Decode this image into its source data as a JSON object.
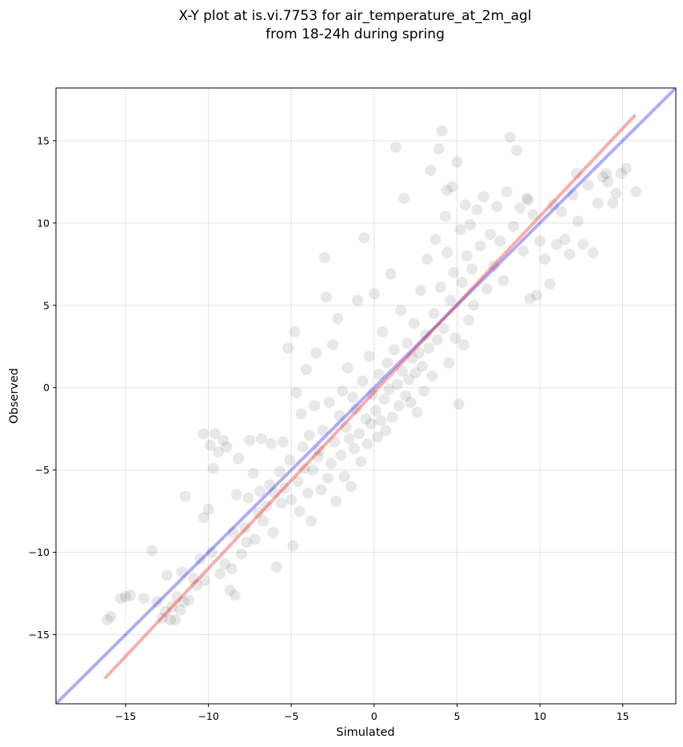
{
  "chart_data": {
    "type": "scatter",
    "title": "X-Y plot at is.vi.7753 for air_temperature_at_2m_agl",
    "subtitle": "from 18-24h during spring",
    "xlabel": "Simulated",
    "ylabel": "Observed",
    "xlim": [
      -19.2,
      18.2
    ],
    "ylim": [
      -19.2,
      18.2
    ],
    "xticks": [
      -15,
      -10,
      -5,
      0,
      5,
      10,
      15
    ],
    "yticks": [
      -15,
      -10,
      -5,
      0,
      5,
      10,
      15
    ],
    "xtick_labels": [
      "−15",
      "−10",
      "−5",
      "0",
      "5",
      "10",
      "15"
    ],
    "ytick_labels": [
      "−15",
      "−10",
      "−5",
      "0",
      "5",
      "10",
      "15"
    ],
    "grid": true,
    "point_color": "#000000",
    "point_opacity": 0.09,
    "points": [
      [
        -16.1,
        -14.1
      ],
      [
        -15.9,
        -13.9
      ],
      [
        -15.3,
        -12.8
      ],
      [
        -15.0,
        -12.7
      ],
      [
        -14.7,
        -12.6
      ],
      [
        -13.9,
        -12.8
      ],
      [
        -13.4,
        -9.9
      ],
      [
        -13.1,
        -13.0
      ],
      [
        -12.8,
        -14.0
      ],
      [
        -12.6,
        -13.6
      ],
      [
        -12.5,
        -11.4
      ],
      [
        -12.3,
        -14.1
      ],
      [
        -12.2,
        -13.3
      ],
      [
        -12.0,
        -14.1
      ],
      [
        -11.9,
        -12.7
      ],
      [
        -11.7,
        -13.5
      ],
      [
        -11.6,
        -11.2
      ],
      [
        -11.5,
        -13.0
      ],
      [
        -11.4,
        -6.6
      ],
      [
        -11.2,
        -12.9
      ],
      [
        -10.9,
        -11.6
      ],
      [
        -10.7,
        -12.0
      ],
      [
        -10.5,
        -10.4
      ],
      [
        -10.3,
        -7.9
      ],
      [
        -10.2,
        -11.7
      ],
      [
        -10.0,
        -7.4
      ],
      [
        -9.9,
        -3.5
      ],
      [
        -9.8,
        -10.0
      ],
      [
        -9.7,
        -4.9
      ],
      [
        -9.6,
        -2.8
      ],
      [
        -10.3,
        -2.8
      ],
      [
        -9.4,
        -3.9
      ],
      [
        -9.3,
        -11.3
      ],
      [
        -9.1,
        -3.2
      ],
      [
        -9.0,
        -10.7
      ],
      [
        -8.9,
        -3.6
      ],
      [
        -8.7,
        -12.3
      ],
      [
        -8.6,
        -11.0
      ],
      [
        -8.5,
        -8.8
      ],
      [
        -8.4,
        -12.6
      ],
      [
        -8.3,
        -6.5
      ],
      [
        -8.2,
        -4.3
      ],
      [
        -8.0,
        -10.1
      ],
      [
        -7.8,
        -8.5
      ],
      [
        -7.7,
        -9.4
      ],
      [
        -7.6,
        -6.7
      ],
      [
        -7.5,
        -3.2
      ],
      [
        -7.3,
        -5.2
      ],
      [
        -7.2,
        -9.2
      ],
      [
        -7.0,
        -7.6
      ],
      [
        -6.9,
        -6.3
      ],
      [
        -6.8,
        -3.1
      ],
      [
        -6.7,
        -8.1
      ],
      [
        -6.5,
        -7.2
      ],
      [
        -6.3,
        -5.9
      ],
      [
        -6.2,
        -3.4
      ],
      [
        -6.1,
        -8.8
      ],
      [
        -6.0,
        -6.4
      ],
      [
        -5.9,
        -10.9
      ],
      [
        -5.7,
        -5.1
      ],
      [
        -5.6,
        -7.0
      ],
      [
        -5.5,
        -3.3
      ],
      [
        -5.4,
        -6.1
      ],
      [
        -5.2,
        2.4
      ],
      [
        -5.1,
        -4.4
      ],
      [
        -5.0,
        -6.8
      ],
      [
        -4.9,
        -9.6
      ],
      [
        -4.8,
        3.4
      ],
      [
        -4.7,
        -0.3
      ],
      [
        -4.6,
        -5.7
      ],
      [
        -4.5,
        -7.5
      ],
      [
        -4.4,
        -1.6
      ],
      [
        -4.3,
        -3.6
      ],
      [
        -4.2,
        -4.9
      ],
      [
        -4.1,
        1.1
      ],
      [
        -4.0,
        -6.4
      ],
      [
        -3.9,
        -2.9
      ],
      [
        -3.8,
        -8.1
      ],
      [
        -3.7,
        -5.0
      ],
      [
        -3.6,
        -1.1
      ],
      [
        -3.5,
        2.1
      ],
      [
        -3.4,
        -4.2
      ],
      [
        -3.3,
        -3.8
      ],
      [
        -3.2,
        -6.2
      ],
      [
        -3.1,
        -2.6
      ],
      [
        -3.0,
        7.9
      ],
      [
        -2.9,
        5.5
      ],
      [
        -2.8,
        -5.5
      ],
      [
        -2.7,
        -0.9
      ],
      [
        -2.6,
        -4.6
      ],
      [
        -2.5,
        2.6
      ],
      [
        -2.4,
        -3.3
      ],
      [
        -2.3,
        -6.9
      ],
      [
        -2.2,
        4.2
      ],
      [
        -2.1,
        -1.7
      ],
      [
        -2.0,
        -4.1
      ],
      [
        -1.9,
        -0.2
      ],
      [
        -1.8,
        -5.4
      ],
      [
        -1.7,
        -2.4
      ],
      [
        -1.6,
        1.2
      ],
      [
        -1.5,
        -3.1
      ],
      [
        -1.4,
        -6.0
      ],
      [
        -1.3,
        -0.6
      ],
      [
        -1.2,
        -3.7
      ],
      [
        -1.1,
        -1.3
      ],
      [
        -1.0,
        5.3
      ],
      [
        -0.9,
        -2.8
      ],
      [
        -0.8,
        -4.5
      ],
      [
        -0.7,
        0.4
      ],
      [
        -0.6,
        9.1
      ],
      [
        -0.5,
        -1.9
      ],
      [
        -0.4,
        -3.4
      ],
      [
        -0.3,
        1.9
      ],
      [
        -0.2,
        -2.2
      ],
      [
        -0.1,
        -0.4
      ],
      [
        0.0,
        5.7
      ],
      [
        0.1,
        -1.4
      ],
      [
        0.2,
        -3.0
      ],
      [
        0.3,
        0.8
      ],
      [
        0.4,
        -2.0
      ],
      [
        0.5,
        3.4
      ],
      [
        0.6,
        -0.7
      ],
      [
        0.7,
        -2.6
      ],
      [
        0.8,
        1.5
      ],
      [
        0.9,
        -0.1
      ],
      [
        1.0,
        6.9
      ],
      [
        1.1,
        -1.8
      ],
      [
        1.2,
        2.3
      ],
      [
        1.3,
        14.6
      ],
      [
        1.4,
        0.2
      ],
      [
        1.5,
        -1.1
      ],
      [
        1.6,
        4.7
      ],
      [
        1.7,
        1.0
      ],
      [
        1.8,
        11.5
      ],
      [
        1.9,
        -0.5
      ],
      [
        2.0,
        2.7
      ],
      [
        2.1,
        0.5
      ],
      [
        2.2,
        -0.9
      ],
      [
        2.3,
        1.8
      ],
      [
        2.4,
        3.9
      ],
      [
        2.5,
        0.9
      ],
      [
        2.6,
        -1.5
      ],
      [
        2.7,
        2.1
      ],
      [
        2.8,
        5.9
      ],
      [
        2.9,
        1.3
      ],
      [
        3.0,
        -0.2
      ],
      [
        3.1,
        3.2
      ],
      [
        3.2,
        7.8
      ],
      [
        3.3,
        2.4
      ],
      [
        3.4,
        13.2
      ],
      [
        3.5,
        0.7
      ],
      [
        3.6,
        4.5
      ],
      [
        3.7,
        9.0
      ],
      [
        3.8,
        2.9
      ],
      [
        3.9,
        14.5
      ],
      [
        4.0,
        6.1
      ],
      [
        4.1,
        15.6
      ],
      [
        4.2,
        3.6
      ],
      [
        4.3,
        10.4
      ],
      [
        4.4,
        8.2
      ],
      [
        4.5,
        1.5
      ],
      [
        4.6,
        5.3
      ],
      [
        4.7,
        12.2
      ],
      [
        4.8,
        7.0
      ],
      [
        4.9,
        3.0
      ],
      [
        5.0,
        13.7
      ],
      [
        5.1,
        -1.0
      ],
      [
        5.2,
        9.6
      ],
      [
        5.3,
        6.4
      ],
      [
        5.4,
        2.6
      ],
      [
        5.5,
        11.1
      ],
      [
        5.6,
        8.0
      ],
      [
        5.7,
        4.1
      ],
      [
        5.8,
        9.9
      ],
      [
        5.9,
        7.2
      ],
      [
        6.0,
        5.0
      ],
      [
        6.2,
        10.8
      ],
      [
        6.4,
        8.6
      ],
      [
        6.6,
        11.6
      ],
      [
        6.8,
        6.0
      ],
      [
        7.0,
        9.3
      ],
      [
        7.2,
        7.4
      ],
      [
        7.4,
        11.0
      ],
      [
        7.6,
        8.9
      ],
      [
        7.8,
        6.5
      ],
      [
        8.0,
        11.9
      ],
      [
        8.2,
        15.2
      ],
      [
        8.4,
        9.8
      ],
      [
        8.6,
        14.4
      ],
      [
        8.8,
        10.9
      ],
      [
        9.0,
        8.3
      ],
      [
        9.2,
        11.5
      ],
      [
        9.4,
        5.4
      ],
      [
        9.6,
        10.5
      ],
      [
        9.8,
        5.6
      ],
      [
        10.0,
        8.9
      ],
      [
        10.3,
        7.8
      ],
      [
        10.6,
        6.3
      ],
      [
        10.8,
        11.1
      ],
      [
        11.0,
        8.7
      ],
      [
        11.3,
        10.7
      ],
      [
        11.5,
        9.0
      ],
      [
        11.8,
        8.1
      ],
      [
        12.0,
        11.7
      ],
      [
        12.3,
        10.1
      ],
      [
        12.6,
        8.7
      ],
      [
        12.9,
        12.3
      ],
      [
        13.2,
        8.2
      ],
      [
        13.5,
        11.2
      ],
      [
        13.8,
        12.8
      ],
      [
        14.1,
        12.5
      ],
      [
        14.4,
        11.2
      ],
      [
        14.6,
        11.8
      ],
      [
        14.9,
        13.0
      ],
      [
        15.2,
        13.3
      ],
      [
        15.8,
        11.9
      ],
      [
        14.0,
        13.0
      ],
      [
        12.2,
        13.0
      ],
      [
        9.3,
        11.4
      ],
      [
        4.4,
        12.0
      ]
    ],
    "lines": [
      {
        "id": "identity",
        "color": "#0000ee",
        "opacity": 0.32,
        "x": [
          -19.2,
          18.2
        ],
        "y": [
          -19.2,
          18.2
        ]
      },
      {
        "id": "fit",
        "color": "#ee0000",
        "opacity": 0.32,
        "x": [
          -16.2,
          15.7
        ],
        "y": [
          -17.6,
          16.5
        ]
      }
    ]
  }
}
